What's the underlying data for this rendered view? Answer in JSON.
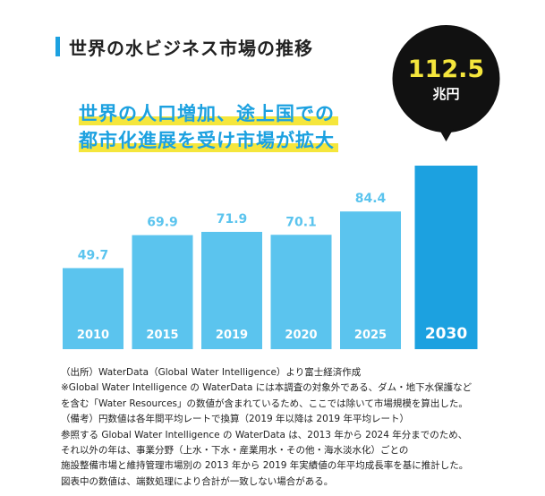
{
  "colors": {
    "bar": "#5bc4ee",
    "bar_highlight": "#1ca1e0",
    "value_text": "#5bc4ee",
    "bubble": "#111111",
    "bubble_number": "#f5e63c",
    "bubble_unit": "#ffffff",
    "headline_text": "#1ca1e0",
    "headline_highlight": "#f5e63c",
    "title_bar": "#1ca1e0"
  },
  "title": "世界の水ビジネス市場の推移",
  "headline": [
    "世界の人口増加、途上国での",
    "都市化進展を受け市場が拡大"
  ],
  "chart_data": {
    "type": "bar",
    "title": "世界の水ビジネス市場の推移",
    "categories": [
      "2010",
      "2015",
      "2019",
      "2020",
      "2025",
      "2030"
    ],
    "value_labels": [
      "49.7",
      "69.9",
      "71.9",
      "70.1",
      "84.4",
      "112.5"
    ],
    "values": [
      49.7,
      69.9,
      71.9,
      70.1,
      84.4,
      112.5
    ],
    "unit": "兆円",
    "highlight_index": 5,
    "ylim": [
      0,
      120
    ],
    "grid": false,
    "legend": "none",
    "annotation": {
      "value": "112.5",
      "unit": "兆円"
    }
  },
  "notes": [
    "（出所）WaterData（Global Water Intelligence）より富士経済作成",
    "※Global Water Intelligence の WaterData には本調査の対象外である、ダム・地下水保護など",
    "を含む「Water Resources」の数値が含まれているため、ここでは除いて市場規模を算出した。",
    "（備考）円数値は各年間平均レートで換算（2019 年以降は 2019 年平均レート）",
    "参照する Global Water Intelligence の WaterData は、2013 年から 2024 年分までのため、",
    "それ以外の年は、事業分野（上水・下水・産業用水・その他・海水淡水化）ごとの",
    "施設整備市場と維持管理市場別の 2013 年から 2019 年実績値の年平均成長率を基に推計した。",
    "図表中の数値は、端数処理により合計が一致しない場合がある。"
  ]
}
